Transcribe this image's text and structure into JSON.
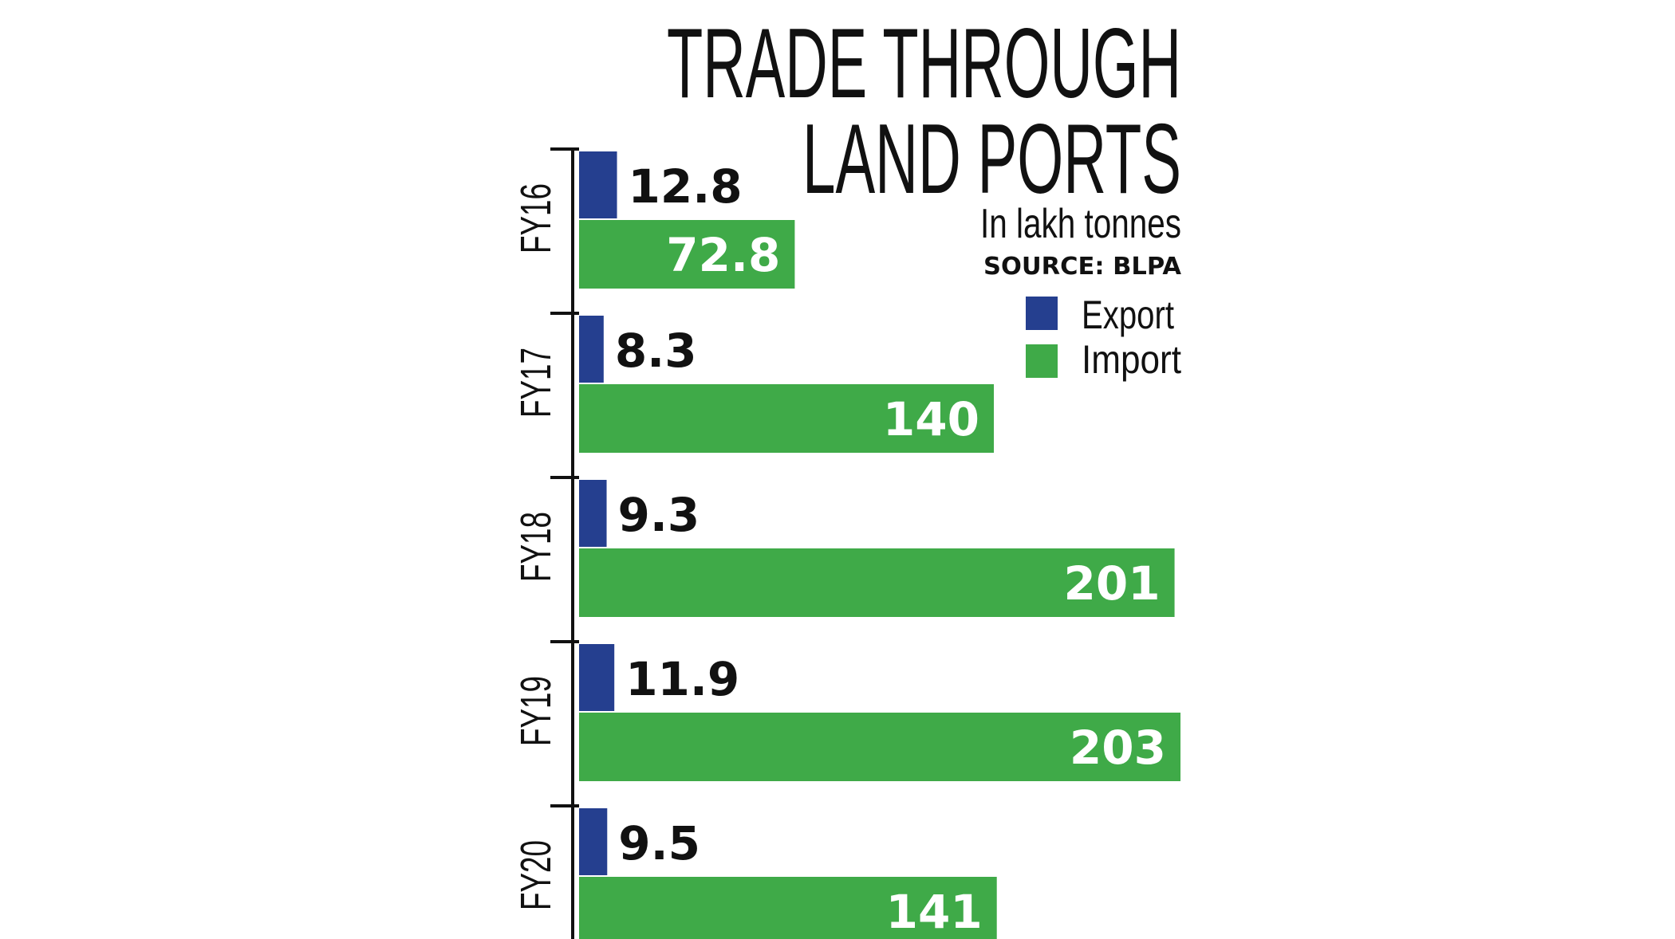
{
  "chart_data": {
    "type": "bar",
    "orientation": "horizontal",
    "title": "TRADE THROUGH LAND PORTS",
    "title_lines": [
      "TRADE THROUGH",
      "LAND PORTS"
    ],
    "subtitle": "In lakh tonnes",
    "source": "SOURCE: BLPA",
    "categories": [
      "FY16",
      "FY17",
      "FY18",
      "FY19",
      "FY20"
    ],
    "series": [
      {
        "name": "Export",
        "color": "#253f8f",
        "values": [
          12.8,
          8.3,
          9.3,
          11.9,
          9.5
        ],
        "labels": [
          "12.8",
          "8.3",
          "9.3",
          "11.9",
          "9.5"
        ]
      },
      {
        "name": "Import",
        "color": "#3faa48",
        "values": [
          72.8,
          140,
          201,
          203,
          141
        ],
        "labels": [
          "72.8",
          "140",
          "201",
          "203",
          "141"
        ]
      }
    ],
    "xlim": [
      0,
      203
    ],
    "legend_position": "top-right",
    "grid": false
  }
}
